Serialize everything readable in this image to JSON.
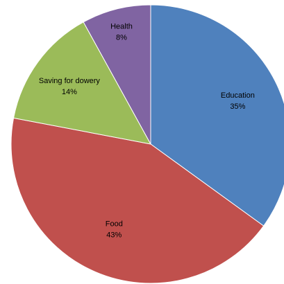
{
  "chart_data": {
    "type": "pie",
    "title": "",
    "slices": [
      {
        "label": "Education",
        "value": 35,
        "value_label": "35%",
        "color": "#4F81BD"
      },
      {
        "label": "Food",
        "value": 43,
        "value_label": "43%",
        "color": "#C0504D"
      },
      {
        "label": "Saving for dowery",
        "value": 14,
        "value_label": "14%",
        "color": "#9BBB59"
      },
      {
        "label": "Health",
        "value": 8,
        "value_label": "8%",
        "color": "#8064A2"
      }
    ],
    "start": "12 o'clock",
    "direction": "clockwise",
    "legend": "none",
    "data_labels": "inside slices"
  }
}
